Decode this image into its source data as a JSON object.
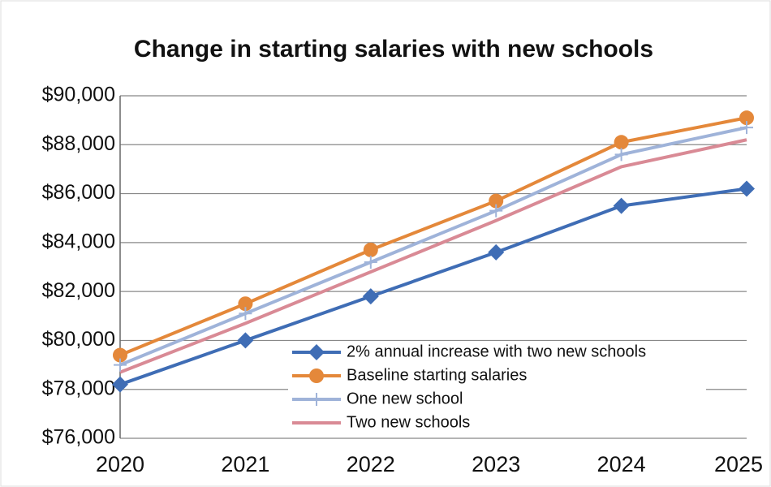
{
  "chart_data": {
    "type": "line",
    "title": "Change in starting salaries with new schools",
    "categories": [
      "2020",
      "2021",
      "2022",
      "2023",
      "2024",
      "2025"
    ],
    "series": [
      {
        "name": "2% annual increase with two new schools",
        "color": "#3f6db5",
        "marker": "diamond",
        "values": [
          78200,
          80000,
          81800,
          83600,
          85500,
          86200
        ]
      },
      {
        "name": "Baseline starting salaries",
        "color": "#e4883a",
        "marker": "circle",
        "values": [
          79400,
          81500,
          83700,
          85700,
          88100,
          89100
        ]
      },
      {
        "name": "One new school",
        "color": "#9fb3d9",
        "marker": "plus",
        "values": [
          79000,
          81100,
          83200,
          85300,
          87600,
          88700
        ]
      },
      {
        "name": "Two new schools",
        "color": "#d98a95",
        "marker": "none",
        "values": [
          78700,
          80700,
          82800,
          84900,
          87100,
          88200
        ]
      }
    ],
    "ylim": [
      76000,
      90000
    ],
    "yticks": [
      {
        "value": 76000,
        "label": "$76,000"
      },
      {
        "value": 78000,
        "label": "$78,000"
      },
      {
        "value": 80000,
        "label": "$80,000"
      },
      {
        "value": 82000,
        "label": "$82,000"
      },
      {
        "value": 84000,
        "label": "$84,000"
      },
      {
        "value": 86000,
        "label": "$86,000"
      },
      {
        "value": 88000,
        "label": "$88,000"
      },
      {
        "value": 90000,
        "label": "$90,000"
      }
    ],
    "grid": true,
    "legend": "lower right"
  }
}
